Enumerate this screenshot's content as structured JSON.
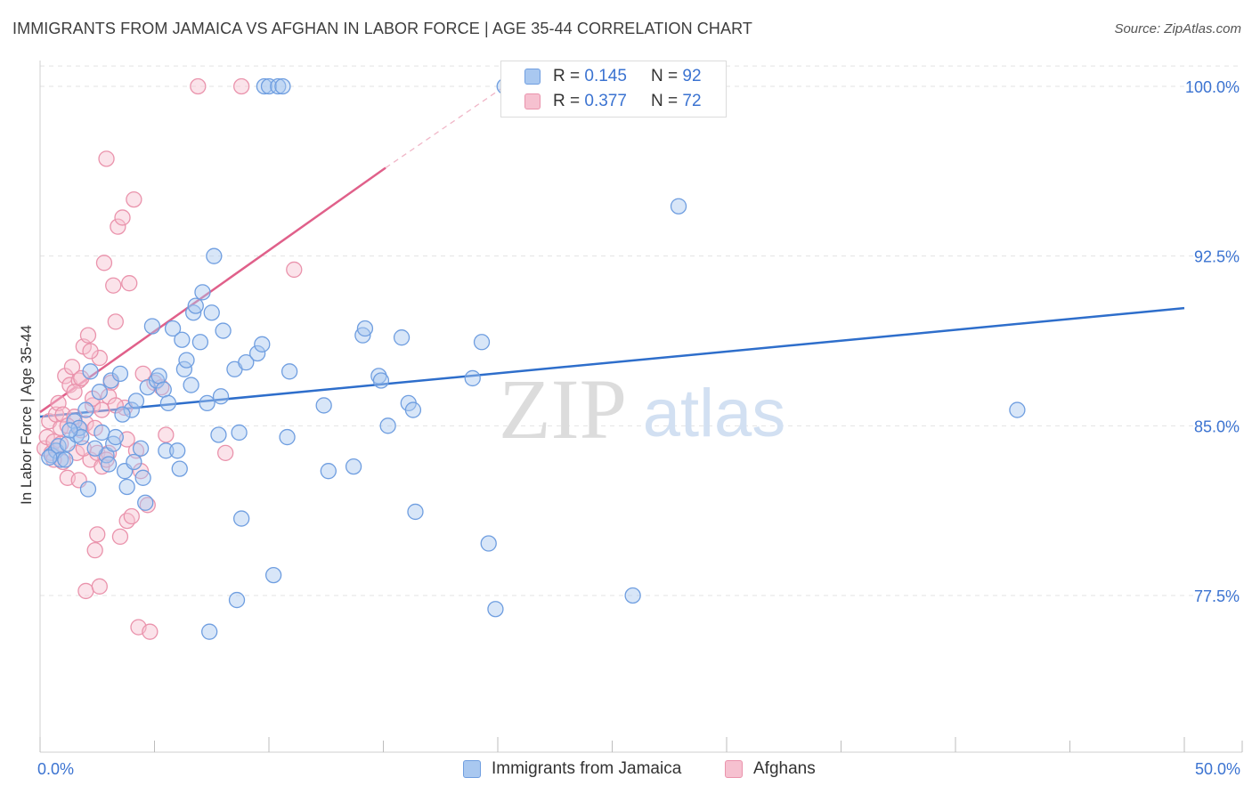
{
  "title": "IMMIGRANTS FROM JAMAICA VS AFGHAN IN LABOR FORCE | AGE 35-44 CORRELATION CHART",
  "source": "Source: ZipAtlas.com",
  "watermark": {
    "zip": "ZIP",
    "atlas": "atlas"
  },
  "colors": {
    "blue_fill": "#a9c8f0",
    "blue_stroke": "#6f9ee0",
    "blue_line": "#2e6ecb",
    "pink_fill": "#f6c1d0",
    "pink_stroke": "#ea93ac",
    "pink_line": "#e0608a",
    "tick_label": "#3b73d1",
    "grid": "#e3e3e3"
  },
  "legend_top": {
    "rows": [
      {
        "r_label": "R =",
        "r_value": "0.145",
        "n_label": "N =",
        "n_value": "92"
      },
      {
        "r_label": "R =",
        "r_value": "0.377",
        "n_label": "N =",
        "n_value": "72"
      }
    ]
  },
  "legend_bottom": {
    "items": [
      {
        "label": "Immigrants from Jamaica"
      },
      {
        "label": "Afghans"
      }
    ]
  },
  "chart_data": {
    "type": "scatter",
    "title": "IMMIGRANTS FROM JAMAICA VS AFGHAN IN LABOR FORCE | AGE 35-44 CORRELATION CHART",
    "xlabel": "",
    "ylabel": "In Labor Force | Age 35-44",
    "xlim": [
      0,
      50
    ],
    "ylim": [
      71.5,
      101.2
    ],
    "x_tick_labels": [
      "0.0%",
      "50.0%"
    ],
    "y_ticks": [
      77.5,
      85.0,
      92.5,
      100.0
    ],
    "y_tick_labels": [
      "77.5%",
      "85.0%",
      "92.5%",
      "100.0%"
    ],
    "grid": true,
    "series": [
      {
        "name": "Immigrants from Jamaica",
        "color": "#a9c8f0",
        "trend": {
          "x": [
            0,
            50
          ],
          "y": [
            85.4,
            90.2
          ],
          "style": "solid"
        },
        "points": [
          [
            0.5,
            83.7
          ],
          [
            0.7,
            83.9
          ],
          [
            0.8,
            84.1
          ],
          [
            0.9,
            83.5
          ],
          [
            1.1,
            83.5
          ],
          [
            1.2,
            84.2
          ],
          [
            1.5,
            85.2
          ],
          [
            1.6,
            84.6
          ],
          [
            1.7,
            84.9
          ],
          [
            1.8,
            84.5
          ],
          [
            2.0,
            85.7
          ],
          [
            2.1,
            82.2
          ],
          [
            2.2,
            87.4
          ],
          [
            2.6,
            86.5
          ],
          [
            2.7,
            84.7
          ],
          [
            2.9,
            83.7
          ],
          [
            3.0,
            83.3
          ],
          [
            3.1,
            87.0
          ],
          [
            3.2,
            84.2
          ],
          [
            3.3,
            84.5
          ],
          [
            3.5,
            87.3
          ],
          [
            3.7,
            83.0
          ],
          [
            3.8,
            82.3
          ],
          [
            4.0,
            85.7
          ],
          [
            4.1,
            83.4
          ],
          [
            4.2,
            86.1
          ],
          [
            4.4,
            84.0
          ],
          [
            4.5,
            82.7
          ],
          [
            4.6,
            81.6
          ],
          [
            4.7,
            86.7
          ],
          [
            4.9,
            89.4
          ],
          [
            5.1,
            87.0
          ],
          [
            5.2,
            87.2
          ],
          [
            5.4,
            86.6
          ],
          [
            5.5,
            83.9
          ],
          [
            5.8,
            89.3
          ],
          [
            6.0,
            83.9
          ],
          [
            6.1,
            83.1
          ],
          [
            6.2,
            88.8
          ],
          [
            6.3,
            87.5
          ],
          [
            6.4,
            87.9
          ],
          [
            6.7,
            90.0
          ],
          [
            6.8,
            90.3
          ],
          [
            7.0,
            88.7
          ],
          [
            7.1,
            90.9
          ],
          [
            7.3,
            86.0
          ],
          [
            7.4,
            75.9
          ],
          [
            7.5,
            90.0
          ],
          [
            7.6,
            92.5
          ],
          [
            7.8,
            84.6
          ],
          [
            7.9,
            86.3
          ],
          [
            8.0,
            89.2
          ],
          [
            8.5,
            87.5
          ],
          [
            8.6,
            77.3
          ],
          [
            8.7,
            84.7
          ],
          [
            8.8,
            80.9
          ],
          [
            9.0,
            87.8
          ],
          [
            9.5,
            88.2
          ],
          [
            9.7,
            88.6
          ],
          [
            9.8,
            100.0
          ],
          [
            10.0,
            100.0
          ],
          [
            10.2,
            78.4
          ],
          [
            10.4,
            100.0
          ],
          [
            10.6,
            100.0
          ],
          [
            10.8,
            84.5
          ],
          [
            10.9,
            87.4
          ],
          [
            12.4,
            85.9
          ],
          [
            12.6,
            83.0
          ],
          [
            13.7,
            83.2
          ],
          [
            14.1,
            89.0
          ],
          [
            14.2,
            89.3
          ],
          [
            14.8,
            87.2
          ],
          [
            14.9,
            87.0
          ],
          [
            15.2,
            85.0
          ],
          [
            15.8,
            88.9
          ],
          [
            16.1,
            86.0
          ],
          [
            16.3,
            85.7
          ],
          [
            16.4,
            81.2
          ],
          [
            18.9,
            87.1
          ],
          [
            19.3,
            88.7
          ],
          [
            19.6,
            79.8
          ],
          [
            19.9,
            76.9
          ],
          [
            20.3,
            100.0
          ],
          [
            25.9,
            77.5
          ],
          [
            27.9,
            94.7
          ],
          [
            42.7,
            85.7
          ],
          [
            1.3,
            84.8
          ],
          [
            2.4,
            84.0
          ],
          [
            3.6,
            85.5
          ],
          [
            5.6,
            86.0
          ],
          [
            6.6,
            86.8
          ],
          [
            0.4,
            83.6
          ]
        ]
      },
      {
        "name": "Afghans",
        "color": "#f6c1d0",
        "trend": {
          "x": [
            0,
            15.1
          ],
          "y": [
            85.6,
            96.4
          ],
          "style": "solid",
          "extension": {
            "x": [
              15.1,
              20.3
            ],
            "y": [
              96.4,
              100.0
            ],
            "style": "dashed"
          }
        },
        "points": [
          [
            0.2,
            84.0
          ],
          [
            0.3,
            84.5
          ],
          [
            0.4,
            85.2
          ],
          [
            0.5,
            83.8
          ],
          [
            0.6,
            84.3
          ],
          [
            0.7,
            85.5
          ],
          [
            0.8,
            86.0
          ],
          [
            0.9,
            84.9
          ],
          [
            1.0,
            85.5
          ],
          [
            1.1,
            87.2
          ],
          [
            1.2,
            82.7
          ],
          [
            1.3,
            86.8
          ],
          [
            1.4,
            87.6
          ],
          [
            1.5,
            85.4
          ],
          [
            1.6,
            83.8
          ],
          [
            1.7,
            87.0
          ],
          [
            1.8,
            84.8
          ],
          [
            1.9,
            88.5
          ],
          [
            2.0,
            85.1
          ],
          [
            2.1,
            89.0
          ],
          [
            2.2,
            83.5
          ],
          [
            2.3,
            85.9
          ],
          [
            2.4,
            84.9
          ],
          [
            2.5,
            83.8
          ],
          [
            2.6,
            88.0
          ],
          [
            2.7,
            83.2
          ],
          [
            2.8,
            92.2
          ],
          [
            2.9,
            96.8
          ],
          [
            3.0,
            83.8
          ],
          [
            3.1,
            86.9
          ],
          [
            3.2,
            91.2
          ],
          [
            3.3,
            89.6
          ],
          [
            3.4,
            93.8
          ],
          [
            3.5,
            80.1
          ],
          [
            3.6,
            94.2
          ],
          [
            3.7,
            85.8
          ],
          [
            3.8,
            80.8
          ],
          [
            3.9,
            91.3
          ],
          [
            4.0,
            81.0
          ],
          [
            4.1,
            95.0
          ],
          [
            4.2,
            83.9
          ],
          [
            4.3,
            76.1
          ],
          [
            4.5,
            87.3
          ],
          [
            4.7,
            81.5
          ],
          [
            4.8,
            75.9
          ],
          [
            5.0,
            86.9
          ],
          [
            5.3,
            86.7
          ],
          [
            5.5,
            84.6
          ],
          [
            8.1,
            83.8
          ],
          [
            11.1,
            91.9
          ],
          [
            6.9,
            100.0
          ],
          [
            8.8,
            100.0
          ],
          [
            2.0,
            77.7
          ],
          [
            2.6,
            77.9
          ],
          [
            2.4,
            79.5
          ],
          [
            2.5,
            80.2
          ],
          [
            1.7,
            82.6
          ],
          [
            2.9,
            83.5
          ],
          [
            1.0,
            83.4
          ],
          [
            1.5,
            86.5
          ],
          [
            2.2,
            88.3
          ],
          [
            3.0,
            86.3
          ],
          [
            1.8,
            87.1
          ],
          [
            2.3,
            86.2
          ],
          [
            0.9,
            84.2
          ],
          [
            1.2,
            85.0
          ],
          [
            1.9,
            84.0
          ],
          [
            2.7,
            85.7
          ],
          [
            3.3,
            85.9
          ],
          [
            0.6,
            83.5
          ],
          [
            4.4,
            83.0
          ],
          [
            3.8,
            84.4
          ]
        ]
      }
    ]
  }
}
